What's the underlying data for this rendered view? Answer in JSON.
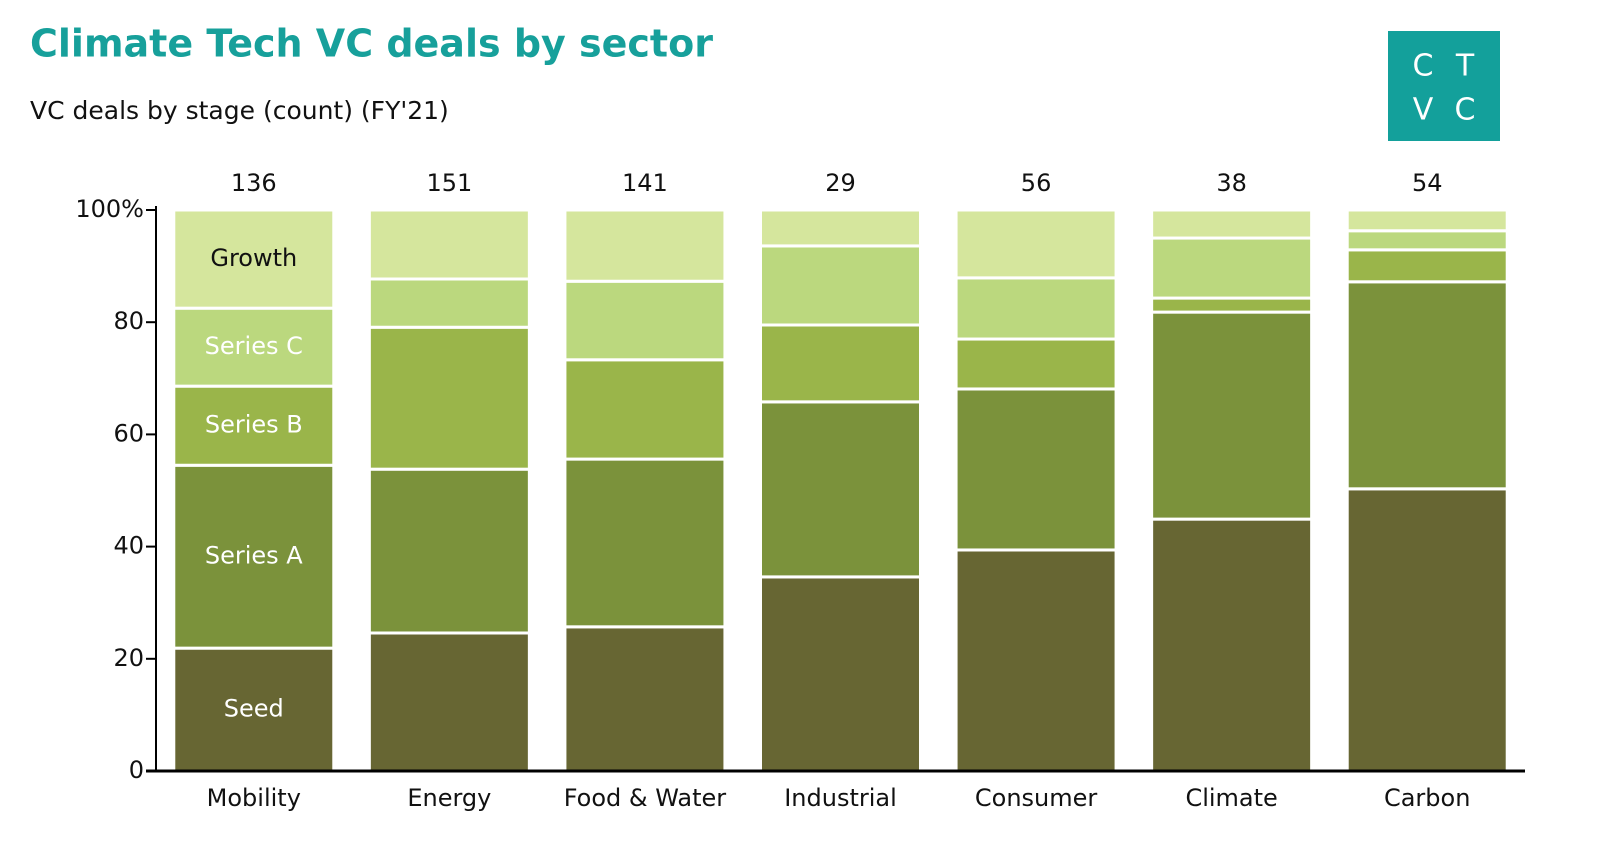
{
  "chart_data": {
    "type": "stacked_bar_100",
    "title": "Climate Tech VC deals by sector",
    "subtitle": "VC deals by stage (count) (FY'21)",
    "logo": [
      "C",
      "T",
      "V",
      "C"
    ],
    "categories": [
      "Mobility",
      "Energy",
      "Food & Water",
      "Industrial",
      "Consumer",
      "Climate",
      "Carbon"
    ],
    "totals": [
      136,
      151,
      141,
      29,
      56,
      38,
      54
    ],
    "series": [
      {
        "name": "Seed",
        "color": "#676633",
        "values": [
          21.9,
          24.6,
          25.7,
          34.6,
          39.4,
          44.9,
          50.3
        ]
      },
      {
        "name": "Series A",
        "color": "#7b923b",
        "values": [
          32.6,
          29.2,
          29.9,
          31.2,
          28.7,
          36.9,
          36.9
        ]
      },
      {
        "name": "Series B",
        "color": "#9ab54a",
        "values": [
          14.1,
          25.3,
          17.7,
          13.7,
          8.9,
          2.5,
          5.7
        ]
      },
      {
        "name": "Series C",
        "color": "#bbd87e",
        "values": [
          13.9,
          8.6,
          14.0,
          14.1,
          10.9,
          10.7,
          3.4
        ]
      },
      {
        "name": "Growth",
        "color": "#d5e69d",
        "values": [
          17.5,
          12.3,
          12.7,
          6.4,
          12.1,
          5.0,
          3.7
        ]
      }
    ],
    "ylim": [
      0,
      100
    ],
    "yticks": [
      0,
      20,
      40,
      60,
      80,
      {
        "value": 100,
        "label": "100%"
      }
    ]
  }
}
